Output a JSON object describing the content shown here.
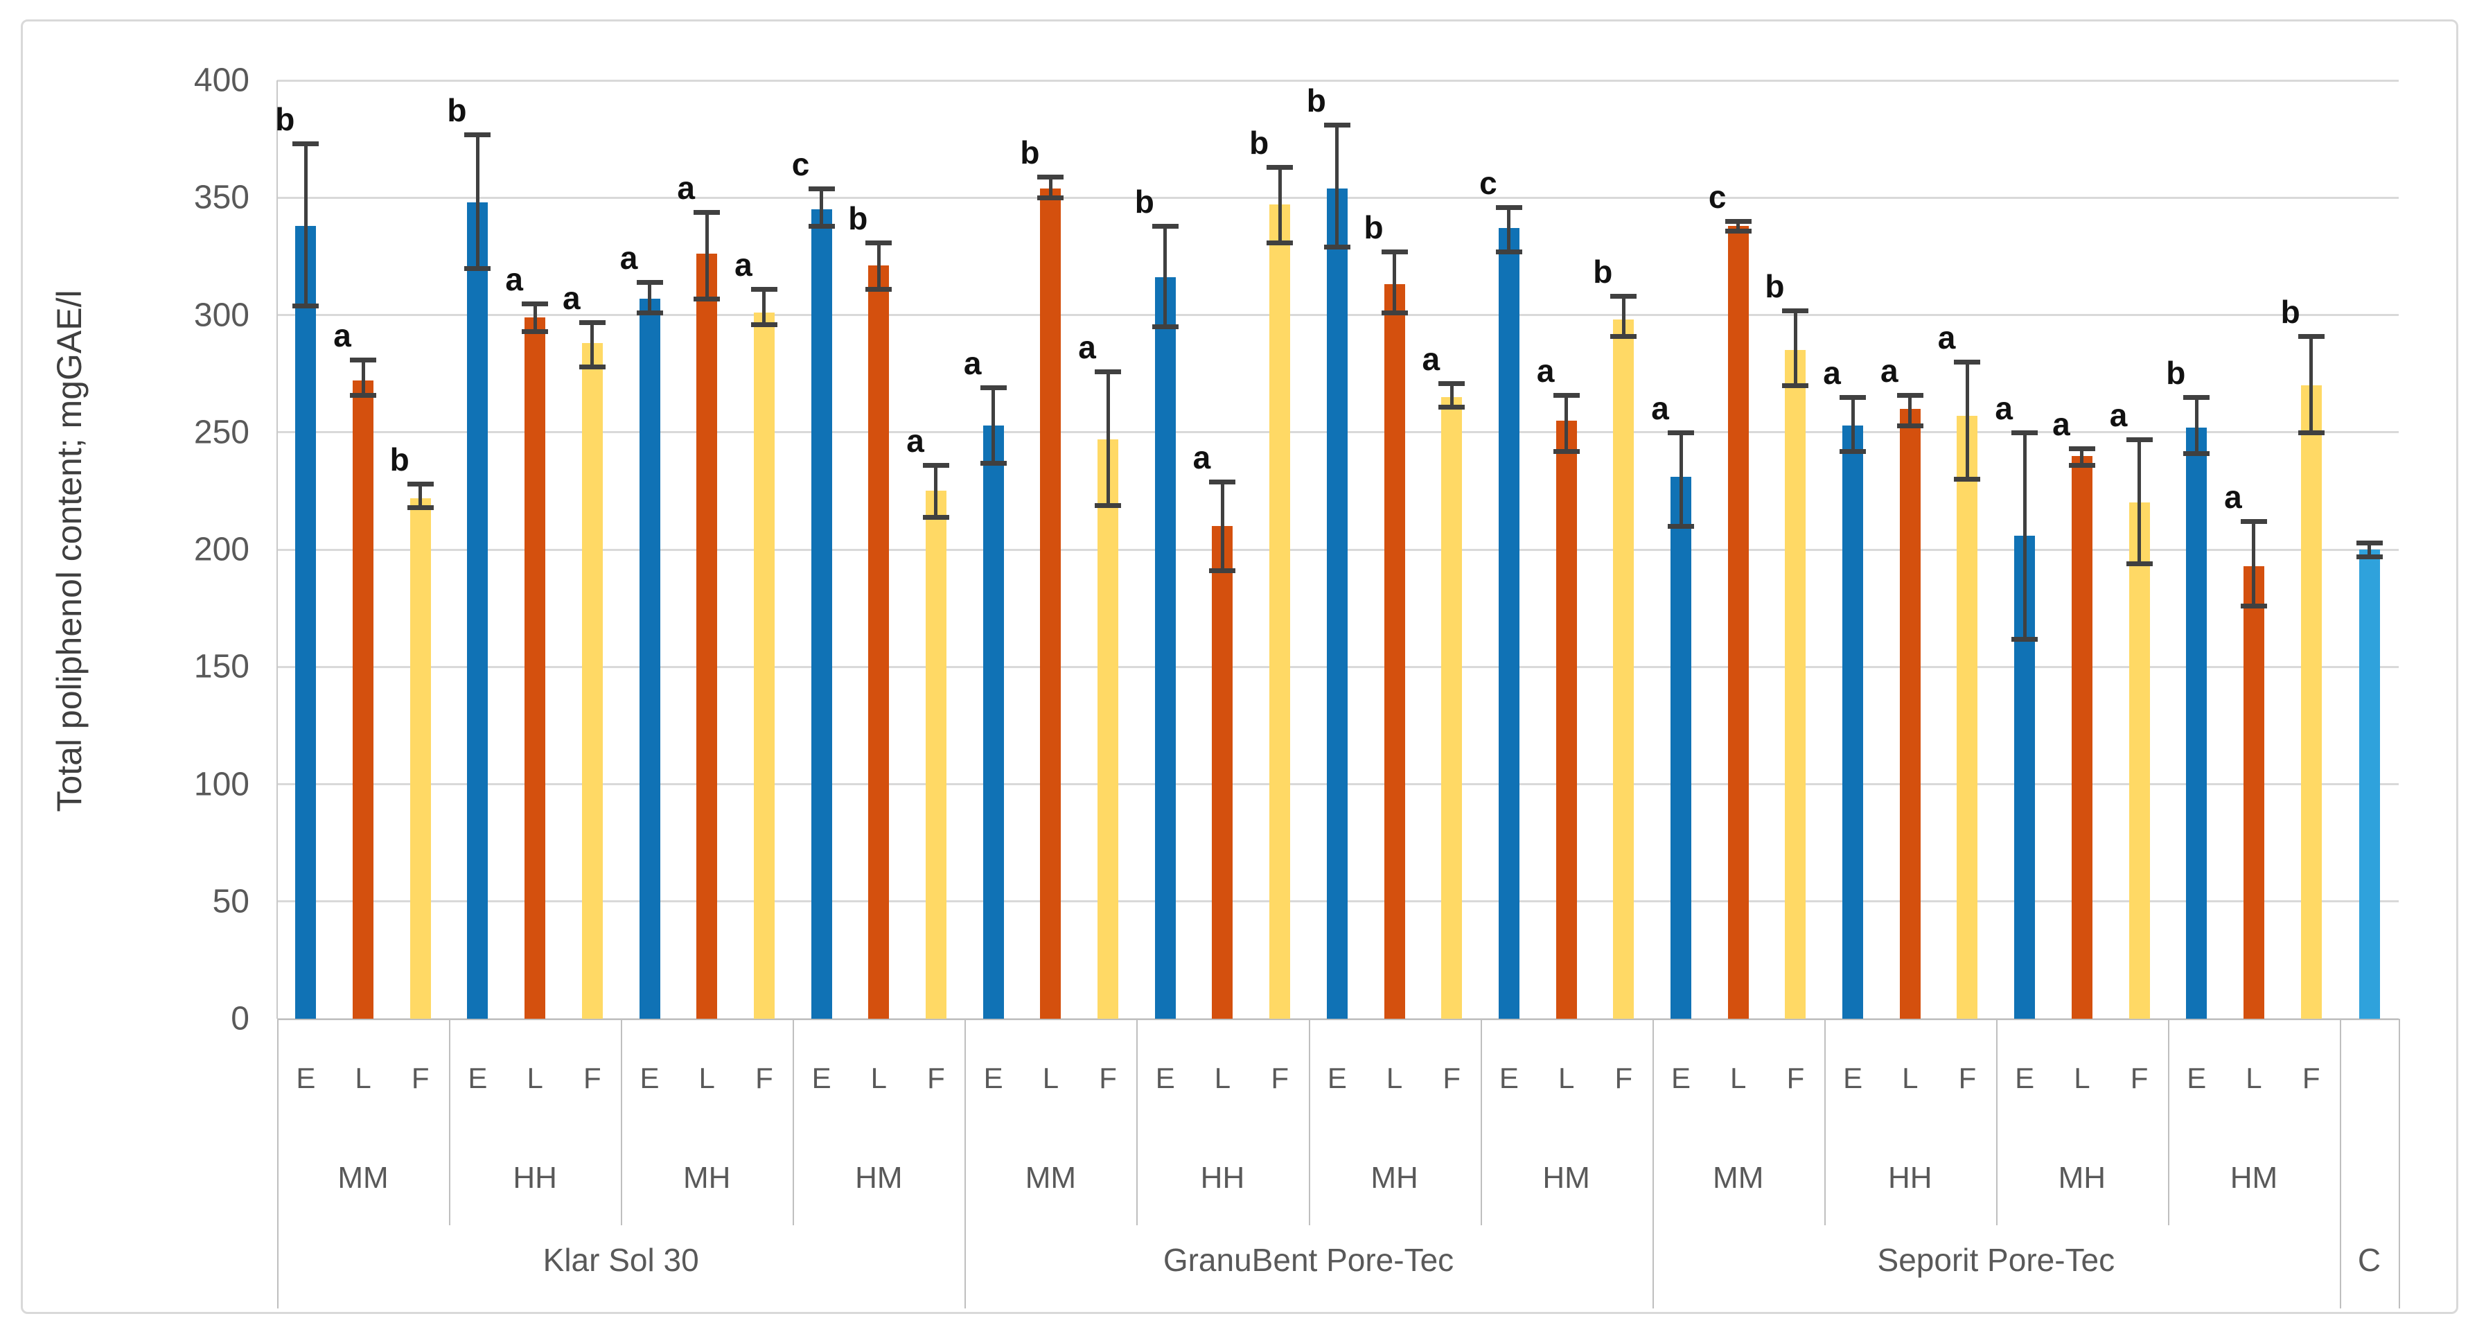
{
  "chart_data": {
    "type": "bar",
    "title": "",
    "ylabel": "Total poliphenol content; mgGAE/l",
    "y_axis": {
      "min": 0,
      "max": 400,
      "step": 50,
      "tick_labels": [
        "400",
        "350",
        "300",
        "250",
        "200",
        "150",
        "100",
        "50",
        "0"
      ]
    },
    "grid": true,
    "legend": "none",
    "series_labels": [
      "E",
      "L",
      "F"
    ],
    "colors": {
      "E": "#1072B5",
      "L": "#D4500E",
      "F": "#FFD965",
      "C": "#2FA2DC",
      "error_bar": "#404040",
      "gridline": "#D9D9D9",
      "table_line": "#BFBFBF",
      "tick_text": "#595959",
      "letter_text": "#111111"
    },
    "groups": [
      {
        "name": "Klar Sol 30",
        "subgroups": [
          {
            "name": "MM",
            "bars": [
              {
                "label": "E",
                "value": 338,
                "err_low": 304,
                "err_high": 373,
                "letter": "b"
              },
              {
                "label": "L",
                "value": 272,
                "err_low": 266,
                "err_high": 281,
                "letter": "a"
              },
              {
                "label": "F",
                "value": 222,
                "err_low": 218,
                "err_high": 228,
                "letter": "b"
              }
            ]
          },
          {
            "name": "HH",
            "bars": [
              {
                "label": "E",
                "value": 348,
                "err_low": 320,
                "err_high": 377,
                "letter": "b"
              },
              {
                "label": "L",
                "value": 299,
                "err_low": 293,
                "err_high": 305,
                "letter": "a"
              },
              {
                "label": "F",
                "value": 288,
                "err_low": 278,
                "err_high": 297,
                "letter": "a"
              }
            ]
          },
          {
            "name": "MH",
            "bars": [
              {
                "label": "E",
                "value": 307,
                "err_low": 301,
                "err_high": 314,
                "letter": "a"
              },
              {
                "label": "L",
                "value": 326,
                "err_low": 307,
                "err_high": 344,
                "letter": "a"
              },
              {
                "label": "F",
                "value": 301,
                "err_low": 296,
                "err_high": 311,
                "letter": "a"
              }
            ]
          },
          {
            "name": "HM",
            "bars": [
              {
                "label": "E",
                "value": 345,
                "err_low": 338,
                "err_high": 354,
                "letter": "c"
              },
              {
                "label": "L",
                "value": 321,
                "err_low": 311,
                "err_high": 331,
                "letter": "b"
              },
              {
                "label": "F",
                "value": 225,
                "err_low": 214,
                "err_high": 236,
                "letter": "a"
              }
            ]
          }
        ]
      },
      {
        "name": "GranuBent Pore-Tec",
        "subgroups": [
          {
            "name": "MM",
            "bars": [
              {
                "label": "E",
                "value": 253,
                "err_low": 237,
                "err_high": 269,
                "letter": "a"
              },
              {
                "label": "L",
                "value": 354,
                "err_low": 350,
                "err_high": 359,
                "letter": "b"
              },
              {
                "label": "F",
                "value": 247,
                "err_low": 219,
                "err_high": 276,
                "letter": "a"
              }
            ]
          },
          {
            "name": "HH",
            "bars": [
              {
                "label": "E",
                "value": 316,
                "err_low": 295,
                "err_high": 338,
                "letter": "b"
              },
              {
                "label": "L",
                "value": 210,
                "err_low": 191,
                "err_high": 229,
                "letter": "a"
              },
              {
                "label": "F",
                "value": 347,
                "err_low": 331,
                "err_high": 363,
                "letter": "b"
              }
            ]
          },
          {
            "name": "MH",
            "bars": [
              {
                "label": "E",
                "value": 354,
                "err_low": 329,
                "err_high": 381,
                "letter": "b"
              },
              {
                "label": "L",
                "value": 313,
                "err_low": 301,
                "err_high": 327,
                "letter": "b"
              },
              {
                "label": "F",
                "value": 265,
                "err_low": 261,
                "err_high": 271,
                "letter": "a"
              }
            ]
          },
          {
            "name": "HM",
            "bars": [
              {
                "label": "E",
                "value": 337,
                "err_low": 327,
                "err_high": 346,
                "letter": "c"
              },
              {
                "label": "L",
                "value": 255,
                "err_low": 242,
                "err_high": 266,
                "letter": "a"
              },
              {
                "label": "F",
                "value": 298,
                "err_low": 291,
                "err_high": 308,
                "letter": "b"
              }
            ]
          }
        ]
      },
      {
        "name": "Seporit Pore-Tec",
        "subgroups": [
          {
            "name": "MM",
            "bars": [
              {
                "label": "E",
                "value": 231,
                "err_low": 210,
                "err_high": 250,
                "letter": "a"
              },
              {
                "label": "L",
                "value": 338,
                "err_low": 336,
                "err_high": 340,
                "letter": "c"
              },
              {
                "label": "F",
                "value": 285,
                "err_low": 270,
                "err_high": 302,
                "letter": "b"
              }
            ]
          },
          {
            "name": "HH",
            "bars": [
              {
                "label": "E",
                "value": 253,
                "err_low": 242,
                "err_high": 265,
                "letter": "a"
              },
              {
                "label": "L",
                "value": 260,
                "err_low": 253,
                "err_high": 266,
                "letter": "a"
              },
              {
                "label": "F",
                "value": 257,
                "err_low": 230,
                "err_high": 280,
                "letter": "a"
              }
            ]
          },
          {
            "name": "MH",
            "bars": [
              {
                "label": "E",
                "value": 206,
                "err_low": 162,
                "err_high": 250,
                "letter": "a"
              },
              {
                "label": "L",
                "value": 240,
                "err_low": 236,
                "err_high": 243,
                "letter": "a"
              },
              {
                "label": "F",
                "value": 220,
                "err_low": 194,
                "err_high": 247,
                "letter": "a"
              }
            ]
          },
          {
            "name": "HM",
            "bars": [
              {
                "label": "E",
                "value": 252,
                "err_low": 241,
                "err_high": 265,
                "letter": "b"
              },
              {
                "label": "L",
                "value": 193,
                "err_low": 176,
                "err_high": 212,
                "letter": "a"
              },
              {
                "label": "F",
                "value": 270,
                "err_low": 250,
                "err_high": 291,
                "letter": "b"
              }
            ]
          }
        ]
      }
    ],
    "control": {
      "name": "C",
      "value": 200,
      "err_low": 197,
      "err_high": 203,
      "letter": ""
    }
  }
}
